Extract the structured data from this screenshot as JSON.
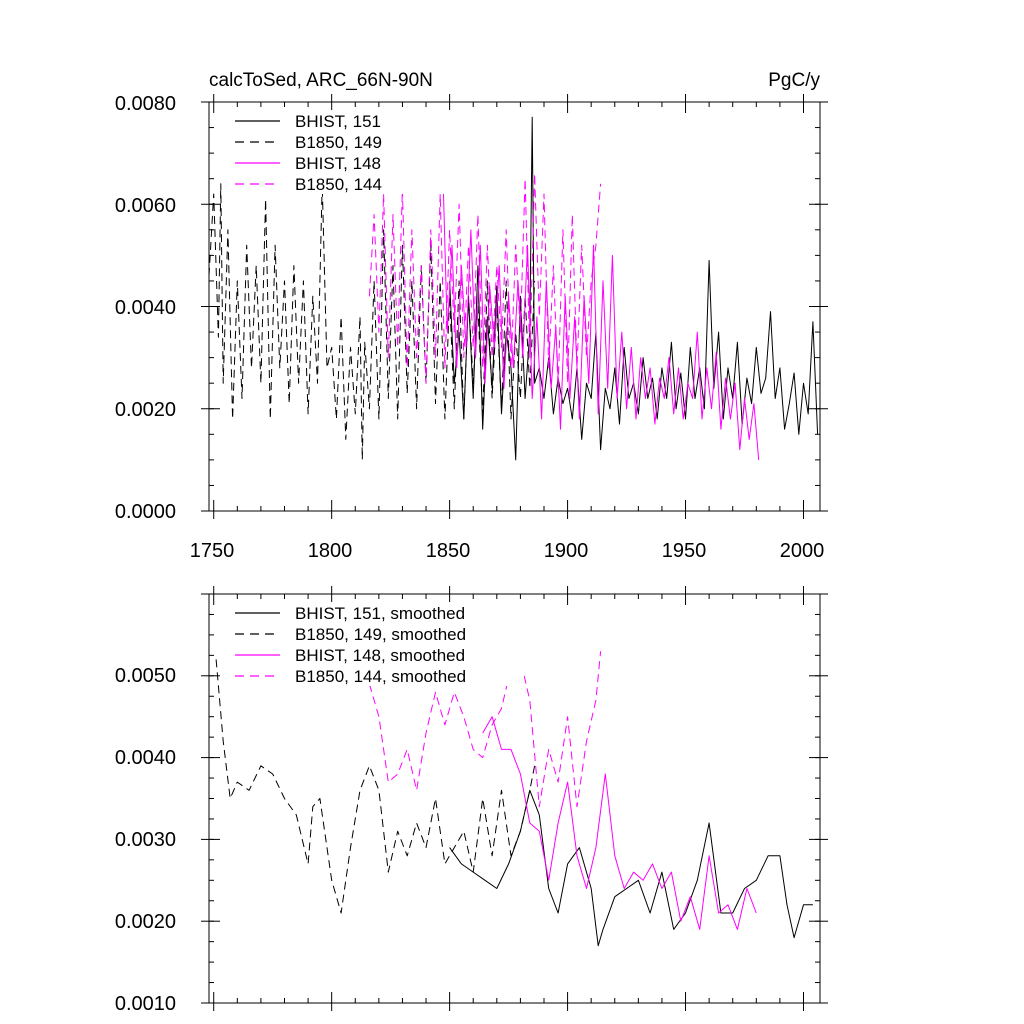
{
  "chart_data": [
    {
      "type": "line",
      "title_left": "calcToSed, ARC_66N-90N",
      "title_right": "PgC/y",
      "xlim": [
        1748,
        2007
      ],
      "ylim": [
        0.0,
        0.008
      ],
      "x_ticks": [
        1750,
        1800,
        1850,
        1900,
        1950,
        2000
      ],
      "x_tick_labels": [
        "1750",
        "1800",
        "1850",
        "1900",
        "1950",
        "2000"
      ],
      "y_ticks": [
        0.0,
        0.002,
        0.004,
        0.006,
        0.008
      ],
      "y_tick_labels": [
        "0.0000",
        "0.0020",
        "0.0040",
        "0.0060",
        "0.0080"
      ],
      "legend": [
        {
          "label": "BHIST, 151",
          "color": "#000000",
          "dash": "solid"
        },
        {
          "label": "B1850, 149",
          "color": "#000000",
          "dash": "dashed"
        },
        {
          "label": "BHIST, 148",
          "color": "#ff00ff",
          "dash": "solid"
        },
        {
          "label": "B1850, 144",
          "color": "#ff00ff",
          "dash": "dashed"
        }
      ],
      "series": [
        {
          "name": "BHIST, 151",
          "color": "#000000",
          "dash": "solid",
          "x": [
            1850,
            1852,
            1854,
            1856,
            1858,
            1860,
            1862,
            1864,
            1866,
            1868,
            1870,
            1872,
            1874,
            1876,
            1878,
            1880,
            1882,
            1884,
            1885,
            1886,
            1888,
            1890,
            1892,
            1894,
            1896,
            1898,
            1900,
            1902,
            1904,
            1906,
            1908,
            1910,
            1912,
            1914,
            1916,
            1918,
            1920,
            1922,
            1924,
            1926,
            1928,
            1930,
            1932,
            1934,
            1936,
            1938,
            1940,
            1942,
            1944,
            1946,
            1948,
            1950,
            1952,
            1954,
            1956,
            1958,
            1960,
            1962,
            1964,
            1966,
            1968,
            1970,
            1972,
            1974,
            1976,
            1978,
            1980,
            1982,
            1984,
            1986,
            1988,
            1990,
            1992,
            1994,
            1996,
            1998,
            2000,
            2002,
            2004,
            2006
          ],
          "y": [
            0.0045,
            0.0025,
            0.0035,
            0.0018,
            0.0042,
            0.0022,
            0.0048,
            0.0016,
            0.0038,
            0.0024,
            0.0044,
            0.0019,
            0.0035,
            0.0028,
            0.001,
            0.0042,
            0.0022,
            0.0035,
            0.0077,
            0.0025,
            0.0028,
            0.0022,
            0.003,
            0.0019,
            0.0026,
            0.0021,
            0.0024,
            0.0018,
            0.0028,
            0.0014,
            0.0025,
            0.0022,
            0.0035,
            0.0012,
            0.0024,
            0.002,
            0.0028,
            0.0017,
            0.0032,
            0.0022,
            0.0025,
            0.0019,
            0.003,
            0.0022,
            0.0026,
            0.0018,
            0.0028,
            0.0022,
            0.0033,
            0.002,
            0.0027,
            0.0018,
            0.0032,
            0.0022,
            0.0028,
            0.002,
            0.0049,
            0.0024,
            0.0035,
            0.0018,
            0.0028,
            0.0022,
            0.0033,
            0.0017,
            0.0026,
            0.0021,
            0.0032,
            0.0023,
            0.0026,
            0.0039,
            0.0022,
            0.0028,
            0.0016,
            0.0021,
            0.0027,
            0.0015,
            0.0025,
            0.0019,
            0.0037,
            0.0015
          ]
        },
        {
          "name": "B1850, 149",
          "color": "#000000",
          "dash": "dashed",
          "x": [
            1748,
            1750,
            1752,
            1753,
            1754,
            1756,
            1758,
            1760,
            1762,
            1764,
            1766,
            1768,
            1770,
            1772,
            1774,
            1776,
            1778,
            1780,
            1782,
            1784,
            1786,
            1788,
            1790,
            1792,
            1794,
            1796,
            1798,
            1800,
            1802,
            1804,
            1806,
            1808,
            1810,
            1812,
            1813,
            1814,
            1816,
            1818,
            1820,
            1822,
            1824,
            1826,
            1828,
            1830,
            1832,
            1834,
            1836,
            1838,
            1840,
            1842,
            1844,
            1846,
            1848,
            1850,
            1852,
            1854,
            1856,
            1858,
            1860,
            1862,
            1864,
            1866,
            1868,
            1870,
            1872,
            1874,
            1876,
            1878,
            1880,
            1882,
            1884,
            1886
          ],
          "y": [
            0.0046,
            0.0062,
            0.0034,
            0.0064,
            0.0025,
            0.0055,
            0.0018,
            0.0045,
            0.0022,
            0.0052,
            0.0028,
            0.0048,
            0.0025,
            0.0061,
            0.0018,
            0.0052,
            0.0028,
            0.0045,
            0.0021,
            0.0048,
            0.0025,
            0.0045,
            0.0019,
            0.0042,
            0.0025,
            0.0064,
            0.0028,
            0.0032,
            0.0018,
            0.0038,
            0.0014,
            0.0032,
            0.0019,
            0.0038,
            0.001,
            0.0033,
            0.002,
            0.0045,
            0.0018,
            0.0055,
            0.0022,
            0.0048,
            0.0018,
            0.0052,
            0.0023,
            0.0045,
            0.002,
            0.0048,
            0.0025,
            0.0052,
            0.0021,
            0.0045,
            0.0018,
            0.0042,
            0.002,
            0.0045,
            0.0018,
            0.0042,
            0.0025,
            0.004,
            0.0019,
            0.0045,
            0.0022,
            0.004,
            0.002,
            0.0045,
            0.0018,
            0.0035,
            0.0022,
            0.0042,
            0.0024,
            0.0045
          ]
        },
        {
          "name": "BHIST, 148",
          "color": "#ff00ff",
          "dash": "solid",
          "x": [
            1847,
            1849,
            1851,
            1853,
            1855,
            1857,
            1859,
            1861,
            1863,
            1865,
            1867,
            1869,
            1871,
            1873,
            1875,
            1877,
            1879,
            1881,
            1883,
            1885,
            1887,
            1889,
            1891,
            1893,
            1895,
            1897,
            1899,
            1901,
            1903,
            1905,
            1907,
            1909,
            1911,
            1913,
            1915,
            1917,
            1919,
            1921,
            1923,
            1925,
            1927,
            1929,
            1931,
            1933,
            1935,
            1937,
            1939,
            1941,
            1943,
            1945,
            1947,
            1949,
            1951,
            1953,
            1955,
            1957,
            1959,
            1961,
            1963,
            1965,
            1967,
            1969,
            1971,
            1973,
            1975,
            1977,
            1979,
            1981
          ],
          "y": [
            0.0069,
            0.0035,
            0.0052,
            0.0028,
            0.0048,
            0.0032,
            0.0055,
            0.003,
            0.0052,
            0.0025,
            0.0044,
            0.0032,
            0.0048,
            0.0024,
            0.0042,
            0.0028,
            0.0045,
            0.003,
            0.0052,
            0.0022,
            0.0038,
            0.0018,
            0.0045,
            0.0024,
            0.0036,
            0.0016,
            0.0042,
            0.0022,
            0.0038,
            0.0018,
            0.0042,
            0.0025,
            0.0052,
            0.0019,
            0.0045,
            0.0024,
            0.005,
            0.0022,
            0.0035,
            0.002,
            0.0032,
            0.0018,
            0.003,
            0.0022,
            0.0028,
            0.0017,
            0.0026,
            0.0022,
            0.003,
            0.0019,
            0.0028,
            0.0018,
            0.0025,
            0.0022,
            0.0035,
            0.0018,
            0.0028,
            0.002,
            0.0031,
            0.0016,
            0.0026,
            0.0018,
            0.0025,
            0.0012,
            0.0022,
            0.0014,
            0.0021,
            0.001
          ]
        },
        {
          "name": "B1850, 144",
          "color": "#ff00ff",
          "dash": "dashed",
          "x": [
            1816,
            1818,
            1820,
            1822,
            1824,
            1826,
            1828,
            1830,
            1832,
            1834,
            1836,
            1838,
            1840,
            1842,
            1844,
            1846,
            1848,
            1850,
            1852,
            1854,
            1856,
            1858,
            1860,
            1862,
            1864,
            1866,
            1868,
            1870,
            1872,
            1874,
            1876,
            1878,
            1880,
            1882,
            1884,
            1886,
            1888,
            1890,
            1892,
            1894,
            1896,
            1898,
            1900,
            1902,
            1904,
            1906,
            1908,
            1910,
            1912,
            1914
          ],
          "y": [
            0.0042,
            0.0058,
            0.0035,
            0.0062,
            0.003,
            0.0058,
            0.0032,
            0.0063,
            0.0028,
            0.0055,
            0.003,
            0.0048,
            0.0025,
            0.0055,
            0.003,
            0.0062,
            0.0028,
            0.0055,
            0.0035,
            0.006,
            0.003,
            0.0052,
            0.0032,
            0.0058,
            0.0028,
            0.0052,
            0.003,
            0.0048,
            0.0032,
            0.0055,
            0.0028,
            0.0052,
            0.0035,
            0.0065,
            0.003,
            0.0066,
            0.0038,
            0.0062,
            0.0028,
            0.0048,
            0.0024,
            0.0055,
            0.0025,
            0.0058,
            0.0028,
            0.0052,
            0.003,
            0.0045,
            0.0052,
            0.0064
          ]
        }
      ]
    },
    {
      "type": "line",
      "xlim": [
        1748,
        2007
      ],
      "ylim": [
        0.001,
        0.006
      ],
      "y_ticks": [
        0.001,
        0.002,
        0.003,
        0.004,
        0.005
      ],
      "y_tick_labels": [
        "0.0010",
        "0.0020",
        "0.0030",
        "0.0040",
        "0.0050"
      ],
      "legend": [
        {
          "label": "BHIST, 151, smoothed",
          "color": "#000000",
          "dash": "solid"
        },
        {
          "label": "B1850, 149, smoothed",
          "color": "#000000",
          "dash": "dashed"
        },
        {
          "label": "BHIST, 148, smoothed",
          "color": "#ff00ff",
          "dash": "solid"
        },
        {
          "label": "B1850, 144, smoothed",
          "color": "#ff00ff",
          "dash": "dashed"
        }
      ],
      "series": [
        {
          "name": "BHIST, 151, smoothed",
          "color": "#000000",
          "dash": "solid",
          "x": [
            1850,
            1855,
            1860,
            1865,
            1870,
            1875,
            1880,
            1884,
            1888,
            1892,
            1896,
            1900,
            1905,
            1910,
            1913,
            1915,
            1920,
            1925,
            1930,
            1935,
            1940,
            1945,
            1950,
            1955,
            1960,
            1965,
            1970,
            1975,
            1980,
            1985,
            1990,
            1993,
            1996,
            2000,
            2004
          ],
          "y": [
            0.0029,
            0.0027,
            0.0026,
            0.0025,
            0.0024,
            0.0027,
            0.0031,
            0.0036,
            0.0033,
            0.0024,
            0.0021,
            0.0027,
            0.0029,
            0.0024,
            0.0017,
            0.0019,
            0.0023,
            0.0024,
            0.0025,
            0.0021,
            0.0026,
            0.0019,
            0.0021,
            0.0025,
            0.0032,
            0.0021,
            0.0021,
            0.0024,
            0.0025,
            0.0028,
            0.0028,
            0.0022,
            0.0018,
            0.0022,
            0.0022
          ]
        },
        {
          "name": "B1850, 149, smoothed",
          "color": "#000000",
          "dash": "dashed",
          "x": [
            1751,
            1754,
            1757,
            1760,
            1765,
            1770,
            1775,
            1780,
            1785,
            1790,
            1792,
            1795,
            1800,
            1804,
            1808,
            1812,
            1816,
            1820,
            1824,
            1828,
            1832,
            1836,
            1840,
            1844,
            1848,
            1852,
            1856,
            1860,
            1864,
            1868,
            1872,
            1876,
            1880,
            1884,
            1886
          ],
          "y": [
            0.0052,
            0.0042,
            0.0035,
            0.0037,
            0.0036,
            0.0039,
            0.0038,
            0.0035,
            0.0033,
            0.0027,
            0.0034,
            0.0035,
            0.0025,
            0.0021,
            0.0029,
            0.0036,
            0.0039,
            0.0036,
            0.0026,
            0.0031,
            0.0028,
            0.0032,
            0.0029,
            0.0035,
            0.0027,
            0.0029,
            0.0031,
            0.0026,
            0.0035,
            0.0028,
            0.0036,
            0.0028,
            0.0031,
            0.0036,
            0.0039
          ]
        },
        {
          "name": "BHIST, 148, smoothed",
          "color": "#ff00ff",
          "dash": "solid",
          "x": [
            1864,
            1868,
            1872,
            1876,
            1880,
            1884,
            1888,
            1892,
            1896,
            1900,
            1904,
            1908,
            1912,
            1916,
            1920,
            1924,
            1928,
            1932,
            1936,
            1940,
            1944,
            1948,
            1952,
            1956,
            1960,
            1964,
            1968,
            1972,
            1976,
            1980
          ],
          "y": [
            0.0043,
            0.0045,
            0.0041,
            0.0041,
            0.0038,
            0.0032,
            0.0031,
            0.0025,
            0.0032,
            0.0037,
            0.0028,
            0.0024,
            0.0029,
            0.0038,
            0.0028,
            0.0024,
            0.0026,
            0.0025,
            0.0027,
            0.0024,
            0.0026,
            0.002,
            0.0023,
            0.0019,
            0.0028,
            0.0021,
            0.0022,
            0.0019,
            0.0024,
            0.0021
          ]
        },
        {
          "name": "B1850, 144, smoothed",
          "color": "#ff00ff",
          "dash": "dashed",
          "x": [
            1816,
            1820,
            1824,
            1828,
            1832,
            1836,
            1840,
            1844,
            1848,
            1852,
            1856,
            1860,
            1864,
            1868,
            1872,
            1876,
            1880,
            1884,
            1888,
            1892,
            1896,
            1900,
            1904,
            1908,
            1912,
            1914
          ],
          "y": [
            0.0049,
            0.0045,
            0.0037,
            0.0038,
            0.0041,
            0.0036,
            0.0043,
            0.0048,
            0.0044,
            0.0048,
            0.0045,
            0.0041,
            0.004,
            0.0044,
            0.0046,
            0.0051,
            0.0052,
            0.0047,
            0.0034,
            0.0041,
            0.0037,
            0.0045,
            0.0034,
            0.0042,
            0.0047,
            0.0053
          ]
        }
      ]
    }
  ]
}
